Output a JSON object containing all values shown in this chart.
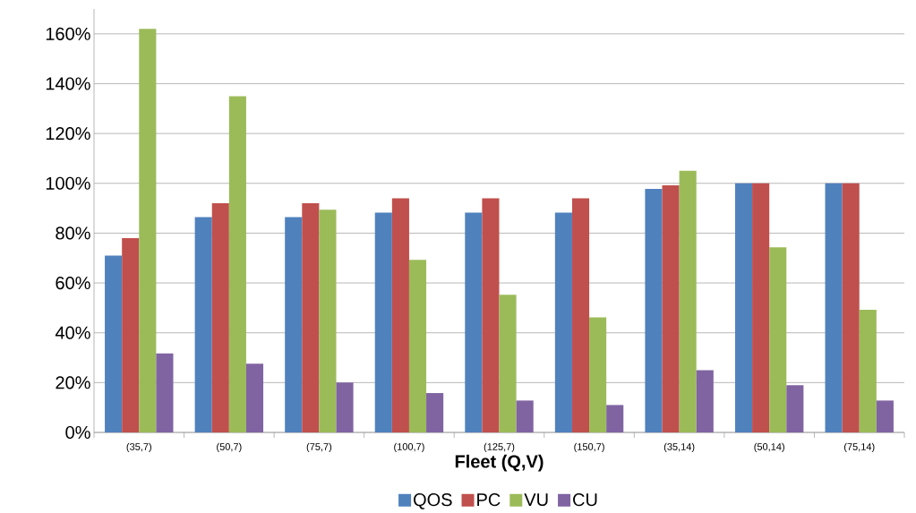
{
  "chart_data": {
    "type": "bar",
    "xlabel": "Fleet (Q,V)",
    "categories": [
      "(35,7)",
      "(50,7)",
      "(75,7)",
      "(100,7)",
      "(125,7)",
      "(150,7)",
      "(35,14)",
      "(50,14)",
      "(75,14)"
    ],
    "series": [
      {
        "name": "QOS",
        "color": "#4f81bd",
        "values": [
          71,
          86.4,
          86.4,
          88.2,
          88.2,
          88.2,
          97.8,
          100,
          100
        ]
      },
      {
        "name": "PC",
        "color": "#c0504d",
        "values": [
          78,
          92,
          92,
          94,
          94,
          94,
          99.2,
          100,
          100
        ]
      },
      {
        "name": "VU",
        "color": "#9bbb59",
        "values": [
          162,
          135,
          89.4,
          69.3,
          55.3,
          46.2,
          105,
          74.3,
          49.2
        ]
      },
      {
        "name": "CU",
        "color": "#8064a2",
        "values": [
          31.7,
          27.6,
          20,
          15.8,
          12.8,
          11,
          25,
          19,
          12.8
        ]
      }
    ],
    "ylim": [
      0,
      170
    ],
    "yticks": [
      {
        "value": 0,
        "label": "0%"
      },
      {
        "value": 20,
        "label": "20%"
      },
      {
        "value": 40,
        "label": "40%"
      },
      {
        "value": 60,
        "label": "60%"
      },
      {
        "value": 80,
        "label": "80%"
      },
      {
        "value": 100,
        "label": "100%"
      },
      {
        "value": 120,
        "label": "120%"
      },
      {
        "value": 140,
        "label": "140%"
      },
      {
        "value": 160,
        "label": "160%"
      }
    ],
    "grid": "y",
    "legend": "bottom"
  }
}
